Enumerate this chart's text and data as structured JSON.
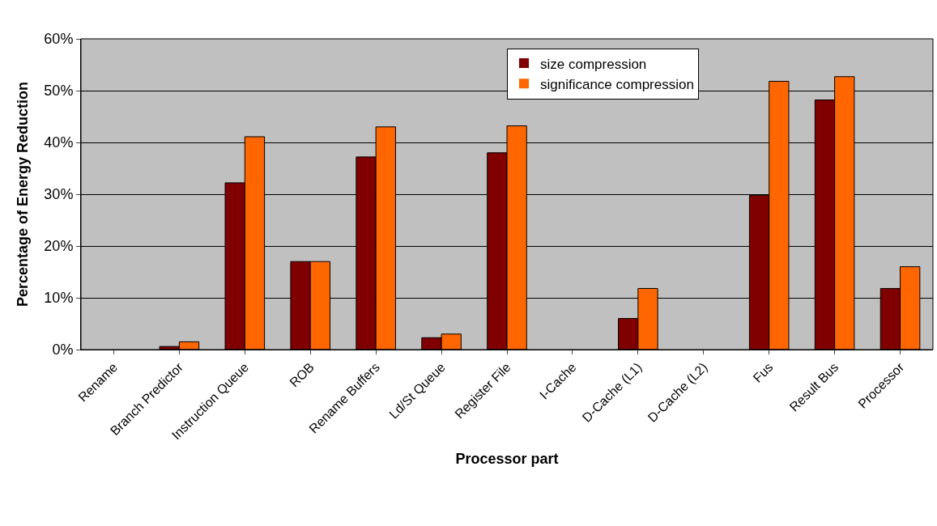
{
  "chart_data": {
    "type": "bar",
    "xlabel": "Processor part",
    "ylabel": "Percentage of Energy Reduction",
    "categories": [
      "Rename",
      "Branch Predictor",
      "Instruction Queue",
      "ROB",
      "Rename Buffers",
      "Ld/St Queue",
      "Register File",
      "I-Cache",
      "D-Cache (L1)",
      "D-Cache (L2)",
      "Fus",
      "Result Bus",
      "Processor"
    ],
    "series": [
      {
        "name": "size compression",
        "color": "#800000",
        "values": [
          0,
          0.6,
          32.2,
          17,
          37.2,
          2.3,
          38,
          0,
          6,
          0,
          29.8,
          48.2,
          11.8
        ]
      },
      {
        "name": "significance compression",
        "color": "#ff6600",
        "values": [
          0,
          1.5,
          41.1,
          17,
          43,
          3,
          43.2,
          0,
          11.8,
          0,
          51.8,
          52.7,
          16
        ]
      }
    ],
    "ylim": [
      0,
      60
    ],
    "yticks": [
      {
        "value": 0,
        "label": "0%"
      },
      {
        "value": 10,
        "label": "10%"
      },
      {
        "value": 20,
        "label": "20%"
      },
      {
        "value": 30,
        "label": "30%"
      },
      {
        "value": 40,
        "label": "40%"
      },
      {
        "value": 50,
        "label": "50%"
      },
      {
        "value": 60,
        "label": "60%"
      }
    ],
    "grid": "y",
    "legend": "top right"
  }
}
